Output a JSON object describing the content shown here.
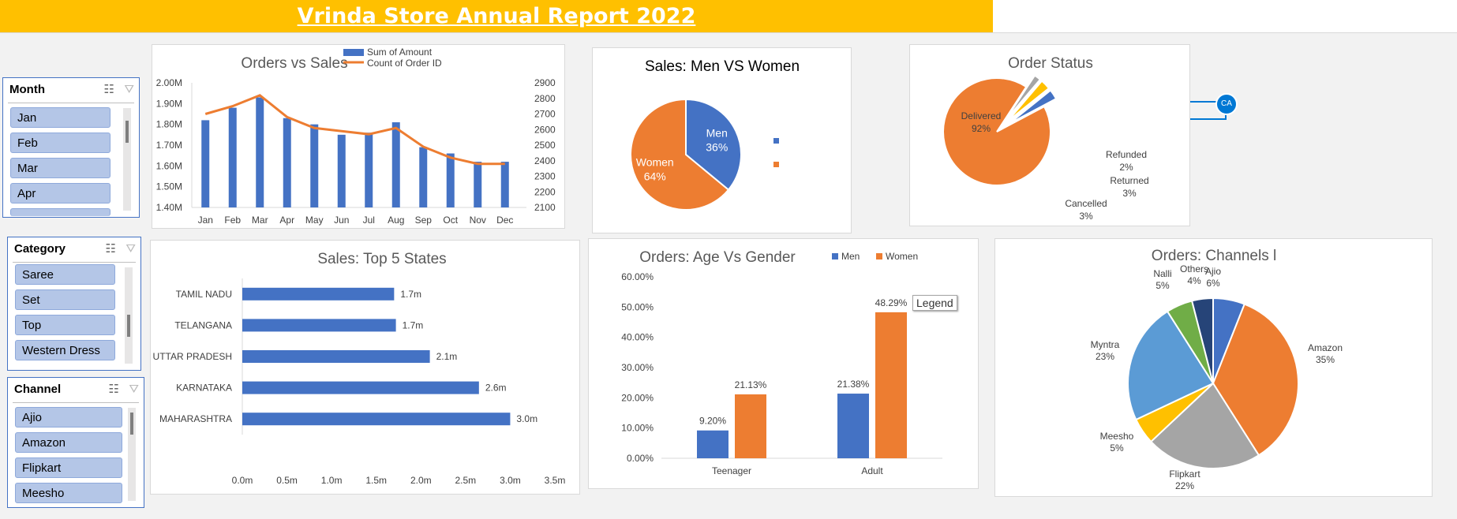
{
  "header": {
    "title": "Vrinda Store Annual Report 2022"
  },
  "slicers": {
    "month": {
      "title": "Month",
      "items": [
        "Jan",
        "Feb",
        "Mar",
        "Apr"
      ]
    },
    "category": {
      "title": "Category",
      "items": [
        "Saree",
        "Set",
        "Top",
        "Western Dress"
      ]
    },
    "channel": {
      "title": "Channel",
      "items": [
        "Ajio",
        "Amazon",
        "Flipkart",
        "Meesho"
      ]
    }
  },
  "icons": {
    "multiselect": "multi-select-icon",
    "clear_filter": "clear-filter-icon"
  },
  "badge": {
    "initials": "CA"
  },
  "tooltip": {
    "text": "Legend"
  },
  "chart_data": [
    {
      "id": "orders_vs_sales",
      "type": "bar",
      "title": "Orders vs Sales",
      "categories": [
        "Jan",
        "Feb",
        "Mar",
        "Apr",
        "May",
        "Jun",
        "Jul",
        "Aug",
        "Sep",
        "Oct",
        "Nov",
        "Dec"
      ],
      "series": [
        {
          "name": "Sum of Amount",
          "type": "bar",
          "color": "#4472c4",
          "values": [
            1.82,
            1.88,
            1.93,
            1.83,
            1.8,
            1.75,
            1.76,
            1.81,
            1.69,
            1.66,
            1.62,
            1.62
          ]
        },
        {
          "name": "Count of Order ID",
          "type": "line",
          "color": "#ed7d31",
          "axis": "secondary",
          "values": [
            2700,
            2750,
            2820,
            2680,
            2610,
            2590,
            2570,
            2610,
            2490,
            2420,
            2380,
            2380
          ]
        }
      ],
      "y_ticks": [
        "1.40M",
        "1.50M",
        "1.60M",
        "1.70M",
        "1.80M",
        "1.90M",
        "2.00M"
      ],
      "ylim": [
        1.4,
        2.0
      ],
      "y2_ticks": [
        "2100",
        "2200",
        "2300",
        "2400",
        "2500",
        "2600",
        "2700",
        "2800",
        "2900"
      ],
      "y2lim": [
        2100,
        2900
      ],
      "legend": "top-right"
    },
    {
      "id": "men_vs_women",
      "type": "pie",
      "title": "Sales: Men VS Women",
      "slices": [
        {
          "label": "Men",
          "value": 36,
          "pct": "36%",
          "color": "#4472c4"
        },
        {
          "label": "Women",
          "value": 64,
          "pct": "64%",
          "color": "#ed7d31"
        }
      ],
      "legend": "right"
    },
    {
      "id": "order_status",
      "type": "pie",
      "title": "Order Status",
      "slices": [
        {
          "label": "Delivered",
          "value": 92,
          "pct": "92%",
          "color": "#ed7d31"
        },
        {
          "label": "Refunded",
          "value": 2,
          "pct": "2%",
          "color": "#a5a5a5"
        },
        {
          "label": "Returned",
          "value": 3,
          "pct": "3%",
          "color": "#ffc000"
        },
        {
          "label": "Cancelled",
          "value": 3,
          "pct": "3%",
          "color": "#4472c4"
        }
      ]
    },
    {
      "id": "top_states",
      "type": "bar",
      "orientation": "horizontal",
      "title": "Sales: Top 5 States",
      "categories": [
        "TAMIL NADU",
        "TELANGANA",
        "UTTAR PRADESH",
        "KARNATAKA",
        "MAHARASHTRA"
      ],
      "values": [
        1.7,
        1.72,
        2.1,
        2.65,
        3.0
      ],
      "labels": [
        "1.7m",
        "1.7m",
        "2.1m",
        "2.6m",
        "3.0m"
      ],
      "x_ticks": [
        "0.0m",
        "0.5m",
        "1.0m",
        "1.5m",
        "2.0m",
        "2.5m",
        "3.0m",
        "3.5m"
      ],
      "xlim": [
        0,
        3.5
      ],
      "color": "#4472c4"
    },
    {
      "id": "age_vs_gender",
      "type": "bar",
      "title": "Orders: Age Vs Gender",
      "categories": [
        "Teenager",
        "Adult"
      ],
      "series": [
        {
          "name": "Men",
          "color": "#4472c4",
          "values": [
            9.2,
            21.38
          ],
          "labels": [
            "9.20%",
            "21.38%"
          ]
        },
        {
          "name": "Women",
          "color": "#ed7d31",
          "values": [
            21.13,
            48.29
          ],
          "labels": [
            "21.13%",
            "48.29%"
          ]
        }
      ],
      "y_ticks": [
        "0.00%",
        "10.00%",
        "20.00%",
        "30.00%",
        "40.00%",
        "50.00%",
        "60.00%"
      ],
      "ylim": [
        0,
        60
      ],
      "legend": "top-right"
    },
    {
      "id": "channels",
      "type": "pie",
      "title": "Orders: Channels l",
      "slices": [
        {
          "label": "Ajio",
          "value": 6,
          "pct": "6%",
          "color": "#4472c4"
        },
        {
          "label": "Amazon",
          "value": 35,
          "pct": "35%",
          "color": "#ed7d31"
        },
        {
          "label": "Flipkart",
          "value": 22,
          "pct": "22%",
          "color": "#a5a5a5"
        },
        {
          "label": "Meesho",
          "value": 5,
          "pct": "5%",
          "color": "#ffc000"
        },
        {
          "label": "Myntra",
          "value": 23,
          "pct": "23%",
          "color": "#5b9bd5"
        },
        {
          "label": "Nalli",
          "value": 5,
          "pct": "5%",
          "color": "#70ad47"
        },
        {
          "label": "Others",
          "value": 4,
          "pct": "4%",
          "color": "#264478"
        }
      ]
    }
  ]
}
